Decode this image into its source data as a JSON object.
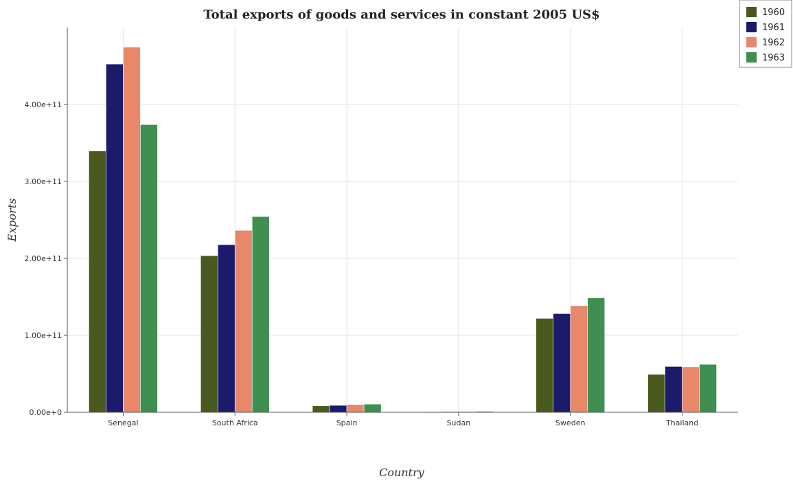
{
  "chart_data": {
    "type": "bar",
    "title": "Total exports of goods and services in constant 2005 US$",
    "xlabel": "Country",
    "ylabel": "Exports",
    "categories": [
      "Senegal",
      "South Africa",
      "Spain",
      "Sudan",
      "Sweden",
      "Thailand"
    ],
    "series": [
      {
        "name": "1960",
        "color": "#4a5a1e",
        "values": [
          339500000000.0,
          203500000000.0,
          8400000000.0,
          800000000.0,
          122000000000.0,
          49300000000.0
        ]
      },
      {
        "name": "1961",
        "color": "#1c1a6b",
        "values": [
          452500000000.0,
          217800000000.0,
          9000000000.0,
          900000000.0,
          128200000000.0,
          59500000000.0
        ]
      },
      {
        "name": "1962",
        "color": "#e8876a",
        "values": [
          474500000000.0,
          236400000000.0,
          10100000000.0,
          1100000000.0,
          138600000000.0,
          59000000000.0
        ]
      },
      {
        "name": "1963",
        "color": "#3f8f51",
        "values": [
          373800000000.0,
          254300000000.0,
          10600000000.0,
          1300000000.0,
          148700000000.0,
          62300000000.0
        ]
      }
    ],
    "ylim": [
      0,
      500000000000.0
    ],
    "yticks": [
      0,
      100000000000.0,
      200000000000.0,
      300000000000.0,
      400000000000.0
    ],
    "ytick_labels": [
      "0.00e+0",
      "1.00e+11",
      "2.00e+11",
      "3.00e+11",
      "4.00e+11"
    ],
    "grid": true,
    "legend_position": "top-right"
  }
}
